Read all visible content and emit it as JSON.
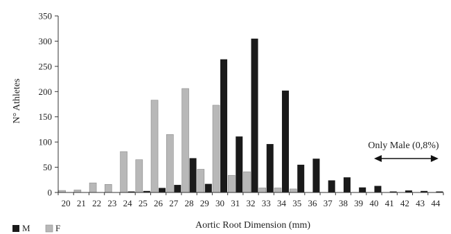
{
  "chart_data": {
    "type": "bar",
    "xlabel": "Aortic Root Dimension (mm)",
    "ylabel": "N° Athletes",
    "ylim": [
      0,
      350
    ],
    "yticks": [
      0,
      50,
      100,
      150,
      200,
      250,
      300,
      350
    ],
    "grid": false,
    "legend_position": "bottom-left",
    "categories": [
      "20",
      "21",
      "22",
      "23",
      "24",
      "25",
      "26",
      "27",
      "28",
      "29",
      "30",
      "31",
      "32",
      "33",
      "34",
      "35",
      "36",
      "37",
      "38",
      "39",
      "40",
      "41",
      "42",
      "43",
      "44"
    ],
    "series": [
      {
        "name": "M",
        "color": "#1a1a1a",
        "values": [
          0,
          0,
          0,
          0,
          2,
          3,
          9,
          15,
          68,
          17,
          264,
          111,
          305,
          96,
          202,
          55,
          67,
          24,
          30,
          10,
          13,
          2,
          4,
          3,
          2
        ]
      },
      {
        "name": "F",
        "color": "#b8b8b8",
        "values": [
          4,
          5,
          19,
          16,
          81,
          65,
          183,
          115,
          206,
          46,
          173,
          34,
          41,
          9,
          9,
          7,
          0,
          0,
          0,
          0,
          0,
          0,
          0,
          0,
          0
        ]
      }
    ],
    "annotation": {
      "text": "Only Male (0,8%)",
      "arrow_from_category": "40",
      "arrow_to_category": "44"
    }
  }
}
